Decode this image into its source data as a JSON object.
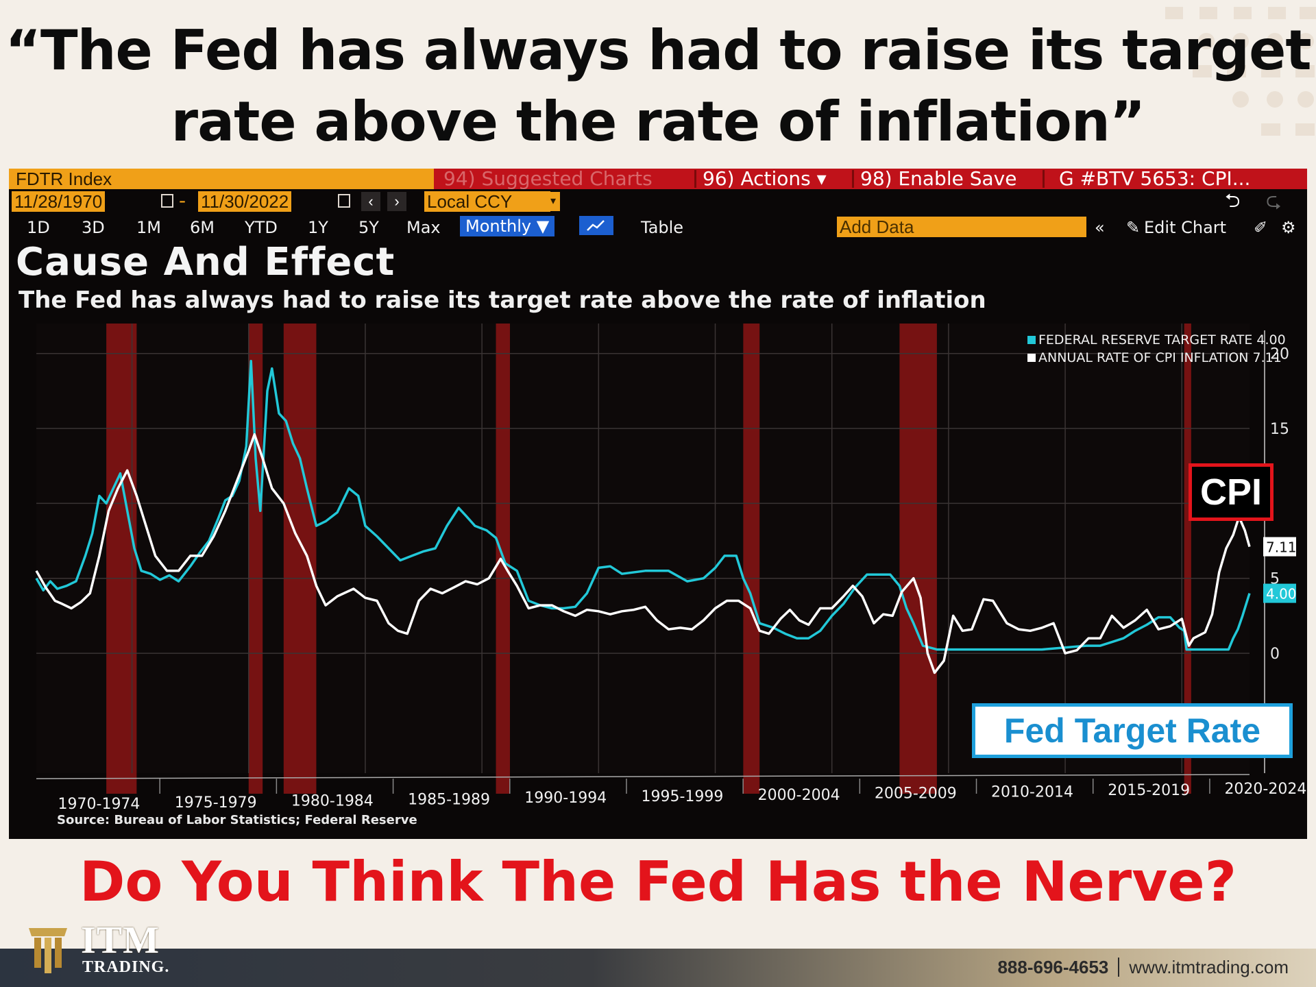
{
  "headline": {
    "line1": "“The Fed has always had to raise its target",
    "line2": "rate above the rate of inflation”"
  },
  "terminal": {
    "index_label": "FDTR Index",
    "menu_suggested": "94) Suggested Charts",
    "menu_actions": "96) Actions ▾",
    "menu_enable_save": "98) Enable Save",
    "menu_ticket": "G #BTV 5653: CPI...",
    "date_start": "11/28/1970",
    "date_dash": "-",
    "date_end": "11/30/2022",
    "currency": "Local CCY",
    "ranges": [
      "1D",
      "3D",
      "1M",
      "6M",
      "YTD",
      "1Y",
      "5Y",
      "Max"
    ],
    "frequency": "Monthly ▼",
    "table_label": "Table",
    "add_data_placeholder": "Add Data",
    "edit_chart": "Edit Chart",
    "colors": {
      "orange": "#f0a018",
      "red_bar": "#c0121a",
      "blue_sel": "#1c5fd0"
    }
  },
  "chart_data": {
    "type": "line",
    "title": "Cause And Effect",
    "subtitle": "The Fed has always had to raise its target rate above the rate of inflation",
    "source": "Source: Bureau of Labor Statistics; Federal Reserve",
    "xlim": [
      1970.9,
      2022.9
    ],
    "ylim": [
      -8,
      22
    ],
    "y_ticks": [
      0,
      5,
      10,
      15,
      20
    ],
    "y_ticks_labeled": [
      0,
      5,
      15,
      20
    ],
    "x_tick_labels": [
      "1970-1974",
      "1975-1979",
      "1980-1984",
      "1985-1989",
      "1990-1994",
      "1995-1999",
      "2000-2004",
      "2005-2009",
      "2010-2014",
      "2015-2019",
      "2020-2024"
    ],
    "grid": true,
    "legend_position": "top-right",
    "recessions": [
      [
        1973.9,
        1975.2
      ],
      [
        1980.0,
        1980.6
      ],
      [
        1981.5,
        1982.9
      ],
      [
        1990.6,
        1991.2
      ],
      [
        2001.2,
        2001.9
      ],
      [
        2007.9,
        2009.5
      ],
      [
        2020.1,
        2020.4
      ]
    ],
    "last_value_tags": [
      {
        "series": "cpi",
        "label": "7.11",
        "value": 7.11
      },
      {
        "series": "fed",
        "label": "4.00",
        "value": 4.0
      }
    ],
    "series": [
      {
        "name": "FEDERAL RESERVE TARGET RATE",
        "legend_label": "FEDERAL RESERVE TARGET RATE 4.00",
        "key": "fed",
        "color": "#22c8d8",
        "x": [
          1970.9,
          1971.2,
          1971.5,
          1971.8,
          1972.2,
          1972.6,
          1973.0,
          1973.3,
          1973.6,
          1973.9,
          1974.2,
          1974.5,
          1974.8,
          1975.1,
          1975.4,
          1975.8,
          1976.2,
          1976.6,
          1977.0,
          1977.5,
          1977.9,
          1978.3,
          1978.7,
          1979.0,
          1979.3,
          1979.6,
          1979.9,
          1980.1,
          1980.3,
          1980.5,
          1980.8,
          1981.0,
          1981.3,
          1981.6,
          1981.9,
          1982.2,
          1982.5,
          1982.9,
          1983.3,
          1983.8,
          1984.3,
          1984.7,
          1985.0,
          1985.5,
          1986.0,
          1986.5,
          1987.0,
          1987.5,
          1988.0,
          1988.5,
          1989.0,
          1989.3,
          1989.7,
          1990.2,
          1990.6,
          1991.0,
          1991.5,
          1992.0,
          1992.5,
          1993.0,
          1993.5,
          1994.0,
          1994.5,
          1995.0,
          1995.5,
          1996.0,
          1997.0,
          1998.0,
          1998.8,
          1999.5,
          2000.0,
          2000.4,
          2000.9,
          2001.2,
          2001.5,
          2001.9,
          2002.5,
          2003.0,
          2003.5,
          2004.0,
          2004.5,
          2005.0,
          2005.5,
          2006.0,
          2006.5,
          2007.0,
          2007.5,
          2007.9,
          2008.2,
          2008.5,
          2008.9,
          2009.5,
          2010.0,
          2012.0,
          2014.0,
          2015.9,
          2016.5,
          2017.0,
          2017.5,
          2018.0,
          2018.5,
          2019.0,
          2019.5,
          2019.9,
          2020.1,
          2020.2,
          2021.0,
          2022.0,
          2022.2,
          2022.4,
          2022.6,
          2022.9
        ],
        "y": [
          5.0,
          4.2,
          4.8,
          4.3,
          4.5,
          4.8,
          6.5,
          8.0,
          10.5,
          10.0,
          11.0,
          12.0,
          9.5,
          7.0,
          5.5,
          5.3,
          4.9,
          5.2,
          4.8,
          5.8,
          6.7,
          7.5,
          9.0,
          10.2,
          10.5,
          11.5,
          13.8,
          19.5,
          13.0,
          9.5,
          17.5,
          19.0,
          16.0,
          15.5,
          14.0,
          13.0,
          11.0,
          8.5,
          8.8,
          9.4,
          11.0,
          10.5,
          8.5,
          7.8,
          7.0,
          6.2,
          6.5,
          6.8,
          7.0,
          8.5,
          9.7,
          9.2,
          8.5,
          8.2,
          7.7,
          6.0,
          5.5,
          3.5,
          3.2,
          3.0,
          3.0,
          3.1,
          4.0,
          5.7,
          5.8,
          5.3,
          5.5,
          5.5,
          4.8,
          5.0,
          5.7,
          6.5,
          6.5,
          5.0,
          4.0,
          2.0,
          1.7,
          1.3,
          1.0,
          1.0,
          1.5,
          2.5,
          3.3,
          4.4,
          5.25,
          5.25,
          5.25,
          4.5,
          3.0,
          2.0,
          0.5,
          0.25,
          0.25,
          0.25,
          0.25,
          0.5,
          0.5,
          0.75,
          1.0,
          1.5,
          1.9,
          2.4,
          2.4,
          1.7,
          1.5,
          0.25,
          0.25,
          0.25,
          1.0,
          1.6,
          2.5,
          4.0
        ]
      },
      {
        "name": "ANNUAL RATE OF CPI INFLATION",
        "legend_label": "ANNUAL RATE OF CPI INFLATION 7.11",
        "key": "cpi",
        "color": "#ffffff",
        "x": [
          1970.9,
          1971.3,
          1971.7,
          1972.0,
          1972.4,
          1972.8,
          1973.2,
          1973.6,
          1974.0,
          1974.4,
          1974.8,
          1975.2,
          1975.6,
          1976.0,
          1976.5,
          1977.0,
          1977.5,
          1978.0,
          1978.5,
          1979.0,
          1979.5,
          1980.0,
          1980.25,
          1980.6,
          1981.0,
          1981.5,
          1982.0,
          1982.5,
          1982.9,
          1983.3,
          1983.8,
          1984.5,
          1985.0,
          1985.5,
          1986.0,
          1986.4,
          1986.8,
          1987.3,
          1987.8,
          1988.3,
          1988.8,
          1989.3,
          1989.8,
          1990.3,
          1990.8,
          1991.1,
          1991.5,
          1992.0,
          1992.5,
          1993.0,
          1993.5,
          1994.0,
          1994.5,
          1995.0,
          1995.5,
          1996.0,
          1996.5,
          1997.0,
          1997.5,
          1998.0,
          1998.5,
          1999.0,
          1999.5,
          2000.0,
          2000.5,
          2001.0,
          2001.5,
          2001.9,
          2002.3,
          2002.8,
          2003.2,
          2003.6,
          2004.0,
          2004.5,
          2005.0,
          2005.5,
          2005.9,
          2006.3,
          2006.8,
          2007.2,
          2007.6,
          2008.0,
          2008.5,
          2008.8,
          2009.1,
          2009.4,
          2009.8,
          2010.2,
          2010.6,
          2011.0,
          2011.5,
          2011.9,
          2012.5,
          2013.0,
          2013.5,
          2014.0,
          2014.5,
          2015.0,
          2015.5,
          2016.0,
          2016.5,
          2017.0,
          2017.5,
          2018.0,
          2018.5,
          2019.0,
          2019.5,
          2020.0,
          2020.3,
          2020.5,
          2021.0,
          2021.3,
          2021.6,
          2021.9,
          2022.2,
          2022.45,
          2022.7,
          2022.9
        ],
        "y": [
          5.5,
          4.4,
          3.5,
          3.3,
          3.0,
          3.4,
          4.0,
          6.5,
          9.5,
          11.0,
          12.2,
          10.5,
          8.5,
          6.5,
          5.5,
          5.5,
          6.5,
          6.5,
          7.8,
          9.5,
          11.5,
          13.5,
          14.6,
          13.0,
          11.0,
          10.0,
          8.0,
          6.5,
          4.5,
          3.2,
          3.8,
          4.3,
          3.7,
          3.5,
          2.0,
          1.5,
          1.3,
          3.5,
          4.3,
          4.0,
          4.4,
          4.8,
          4.6,
          5.0,
          6.3,
          5.5,
          4.5,
          3.0,
          3.2,
          3.2,
          2.8,
          2.5,
          2.9,
          2.8,
          2.6,
          2.8,
          2.9,
          3.1,
          2.2,
          1.6,
          1.7,
          1.6,
          2.2,
          3.0,
          3.5,
          3.5,
          3.0,
          1.5,
          1.3,
          2.3,
          2.9,
          2.2,
          1.9,
          3.0,
          3.0,
          3.8,
          4.5,
          3.8,
          2.0,
          2.6,
          2.5,
          4.1,
          5.0,
          3.7,
          0.0,
          -1.3,
          -0.5,
          2.5,
          1.5,
          1.6,
          3.6,
          3.5,
          2.0,
          1.6,
          1.5,
          1.7,
          2.0,
          0.0,
          0.2,
          1.0,
          1.0,
          2.5,
          1.7,
          2.2,
          2.9,
          1.6,
          1.8,
          2.3,
          0.5,
          1.0,
          1.4,
          2.6,
          5.4,
          7.0,
          7.9,
          9.1,
          8.2,
          7.11
        ]
      }
    ]
  },
  "overlays": {
    "cpi_label": "CPI",
    "fed_label": "Fed Target Rate"
  },
  "bottom_question": "Do You Think The Fed Has the Nerve?",
  "footer": {
    "brand_line1": "ITM",
    "brand_line2": "TRADING.",
    "phone": "888-696-4653",
    "website": "www.itmtrading.com"
  }
}
